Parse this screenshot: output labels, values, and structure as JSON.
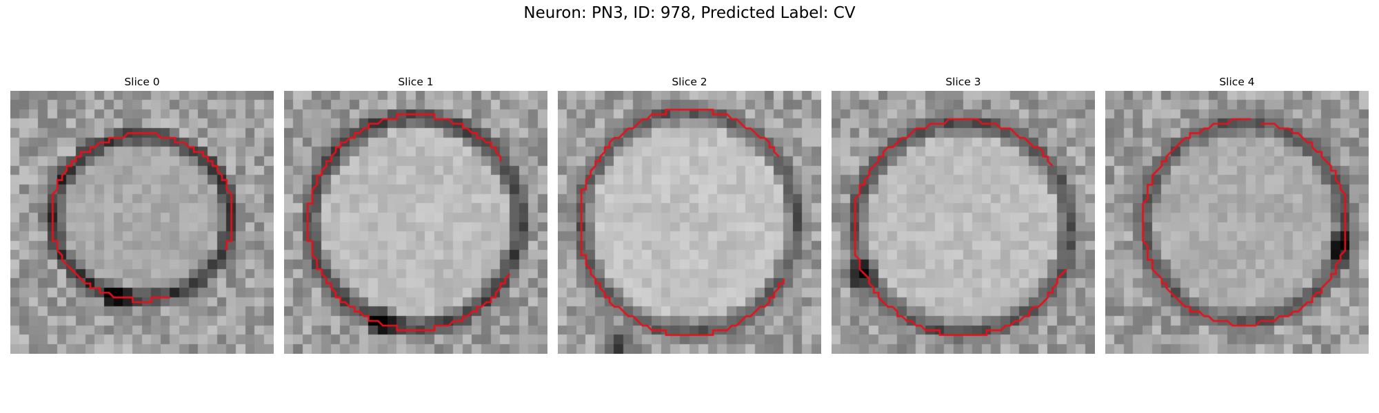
{
  "figure": {
    "title": "Neuron: PN3, ID: 978, Predicted Label: CV"
  },
  "colors": {
    "contour": "#e8101a",
    "background": "#ffffff"
  },
  "slices": [
    {
      "title": "Slice 0",
      "brightness": 0.58,
      "ring_darkness": 0.5
    },
    {
      "title": "Slice 1",
      "brightness": 0.66,
      "ring_darkness": 0.55
    },
    {
      "title": "Slice 2",
      "brightness": 0.68,
      "ring_darkness": 0.45
    },
    {
      "title": "Slice 3",
      "brightness": 0.66,
      "ring_darkness": 0.45
    },
    {
      "title": "Slice 4",
      "brightness": 0.6,
      "ring_darkness": 0.35
    }
  ]
}
